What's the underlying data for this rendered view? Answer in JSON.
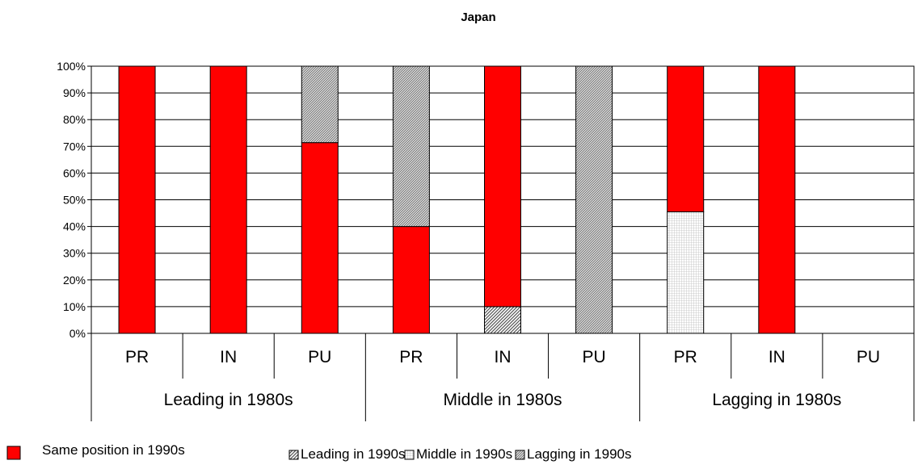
{
  "chart_data": {
    "type": "bar",
    "stacked": true,
    "title": "Japan",
    "xlabel": "",
    "ylabel": "",
    "ylim": [
      0,
      100
    ],
    "yticks": [
      "0%",
      "10%",
      "20%",
      "30%",
      "40%",
      "50%",
      "60%",
      "70%",
      "80%",
      "90%",
      "100%"
    ],
    "grid": true,
    "legend_position": "bottom",
    "groups": [
      "Leading in 1980s",
      "Middle in 1980s",
      "Lagging in 1980s"
    ],
    "categories": [
      "PR",
      "IN",
      "PU",
      "PR",
      "IN",
      "PU",
      "PR",
      "IN",
      "PU"
    ],
    "series": [
      {
        "name": "Same position in 1990s",
        "color": "#ff0000",
        "pattern": "solid",
        "values": [
          100,
          100,
          71.4,
          40,
          90,
          0,
          54.5,
          100,
          0
        ]
      },
      {
        "name": "Leading in 1990s",
        "color": "#808080",
        "pattern": "diagonal-dense",
        "values": [
          0,
          0,
          0,
          0,
          10,
          0,
          0,
          0,
          0
        ]
      },
      {
        "name": "Middle in 1990s",
        "color": "#c0c0c0",
        "pattern": "grid",
        "values": [
          0,
          0,
          0,
          0,
          0,
          0,
          45.5,
          0,
          0
        ]
      },
      {
        "name": "Lagging in 1990s",
        "color": "#808080",
        "pattern": "diagonal-fine",
        "values": [
          0,
          0,
          28.6,
          60,
          0,
          100,
          0,
          0,
          0
        ]
      }
    ],
    "stack_order": [
      1,
      2,
      0,
      3
    ]
  }
}
